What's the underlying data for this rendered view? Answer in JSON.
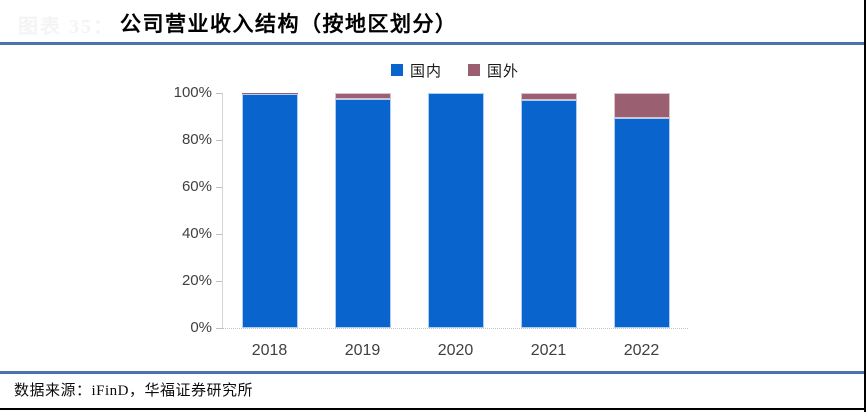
{
  "figure_label": "图表 35：",
  "title": "公司营业收入结构（按地区划分）",
  "chart_data": {
    "type": "bar",
    "stacked": true,
    "title": "公司营业收入结构（按地区划分）",
    "categories": [
      "2018",
      "2019",
      "2020",
      "2021",
      "2022"
    ],
    "series": [
      {
        "name": "国内",
        "color": "#0a64cd",
        "edge": "#aecdf0",
        "values": [
          99.4,
          97.6,
          99.8,
          96.9,
          89.5
        ]
      },
      {
        "name": "国外",
        "color": "#9a5f70",
        "edge": "#ddc2ca",
        "values": [
          0.6,
          2.4,
          0.2,
          3.1,
          10.5
        ]
      }
    ],
    "xlabel": "",
    "ylabel": "",
    "ylim": [
      0,
      100
    ],
    "yticks": [
      "0%",
      "20%",
      "40%",
      "60%",
      "80%",
      "100%"
    ],
    "legend_position": "top-center",
    "grid": false,
    "baseline_style": "dotted"
  },
  "footer": {
    "source_label": "数据来源：iFinD，华福证券研究所"
  },
  "colors": {
    "domestic_bar": "#0a64cd",
    "foreign_bar": "#9a5f70",
    "divider_blue": "#4a74ad",
    "axis_gray": "#d6d6d6",
    "label_gray": "#404040",
    "border_black": "#000000"
  }
}
